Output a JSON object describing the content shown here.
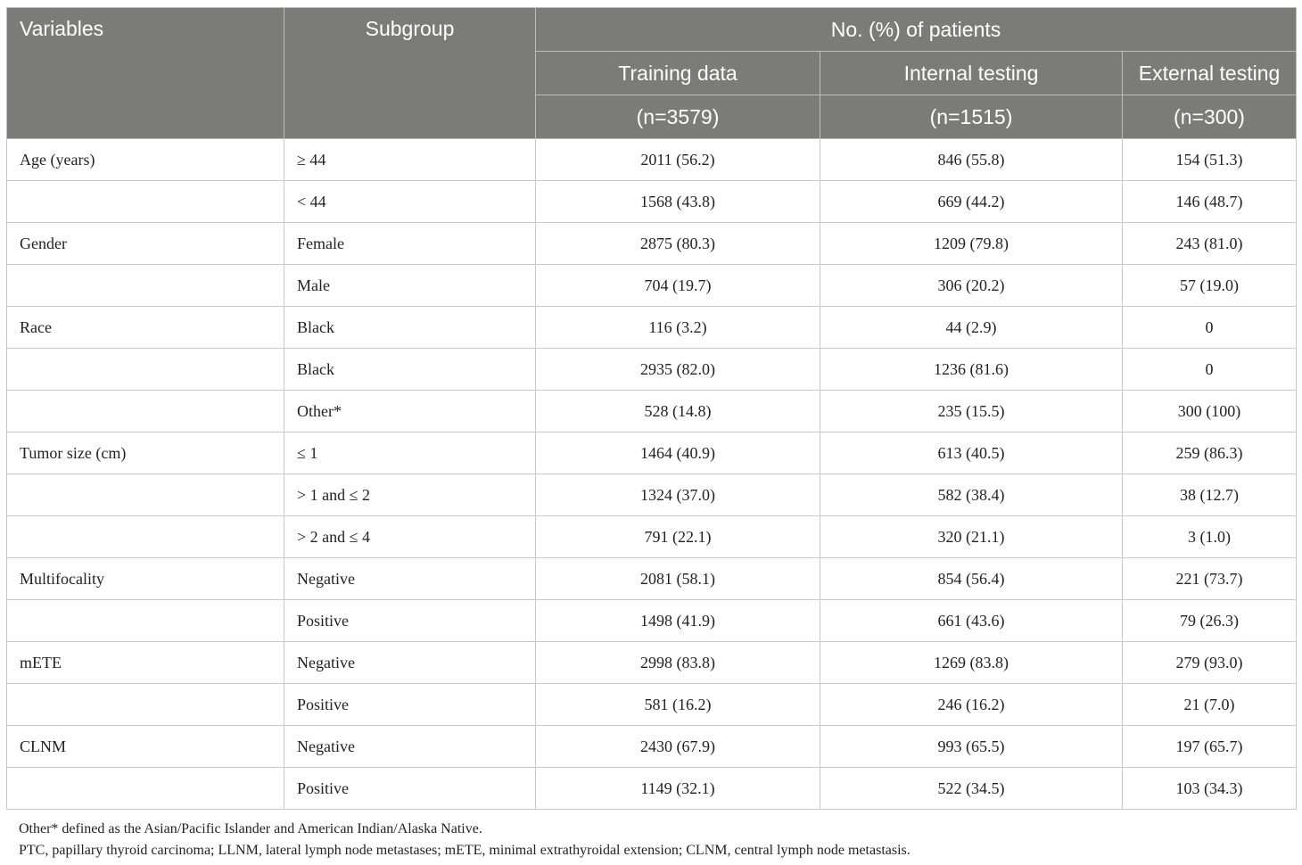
{
  "header": {
    "variables": "Variables",
    "subgroup": "Subgroup",
    "group_title": "No. (%) of patients",
    "cols": [
      {
        "name": "Training data",
        "n": "(n=3579)"
      },
      {
        "name": "Internal testing",
        "n": "(n=1515)"
      },
      {
        "name": "External testing",
        "n": "(n=300)"
      }
    ]
  },
  "rows": [
    {
      "variable": "Age (years)",
      "subgroup": "≥ 44",
      "training": "2011 (56.2)",
      "internal": "846 (55.8)",
      "external": "154 (51.3)"
    },
    {
      "variable": "",
      "subgroup": "< 44",
      "training": "1568 (43.8)",
      "internal": "669 (44.2)",
      "external": "146 (48.7)"
    },
    {
      "variable": "Gender",
      "subgroup": "Female",
      "training": "2875 (80.3)",
      "internal": "1209 (79.8)",
      "external": "243 (81.0)"
    },
    {
      "variable": "",
      "subgroup": "Male",
      "training": "704 (19.7)",
      "internal": "306 (20.2)",
      "external": "57 (19.0)"
    },
    {
      "variable": "Race",
      "subgroup": "Black",
      "training": "116 (3.2)",
      "internal": "44 (2.9)",
      "external": "0"
    },
    {
      "variable": "",
      "subgroup": "Black",
      "training": "2935 (82.0)",
      "internal": "1236 (81.6)",
      "external": "0"
    },
    {
      "variable": "",
      "subgroup": "Other*",
      "training": "528 (14.8)",
      "internal": "235 (15.5)",
      "external": "300 (100)"
    },
    {
      "variable": "Tumor size (cm)",
      "subgroup": "≤ 1",
      "training": "1464 (40.9)",
      "internal": "613 (40.5)",
      "external": "259 (86.3)"
    },
    {
      "variable": "",
      "subgroup": "> 1 and ≤ 2",
      "training": "1324 (37.0)",
      "internal": "582 (38.4)",
      "external": "38 (12.7)"
    },
    {
      "variable": "",
      "subgroup": "> 2 and ≤ 4",
      "training": "791 (22.1)",
      "internal": "320 (21.1)",
      "external": "3 (1.0)"
    },
    {
      "variable": "Multifocality",
      "subgroup": "Negative",
      "training": "2081 (58.1)",
      "internal": "854 (56.4)",
      "external": "221 (73.7)"
    },
    {
      "variable": "",
      "subgroup": "Positive",
      "training": "1498 (41.9)",
      "internal": "661 (43.6)",
      "external": "79 (26.3)"
    },
    {
      "variable": "mETE",
      "subgroup": "Negative",
      "training": "2998 (83.8)",
      "internal": "1269 (83.8)",
      "external": "279 (93.0)"
    },
    {
      "variable": "",
      "subgroup": "Positive",
      "training": "581 (16.2)",
      "internal": "246 (16.2)",
      "external": "21 (7.0)"
    },
    {
      "variable": "CLNM",
      "subgroup": "Negative",
      "training": "2430 (67.9)",
      "internal": "993 (65.5)",
      "external": "197 (65.7)"
    },
    {
      "variable": "",
      "subgroup": "Positive",
      "training": "1149 (32.1)",
      "internal": "522 (34.5)",
      "external": "103 (34.3)"
    }
  ],
  "footnotes": [
    "Other* defined as the Asian/Pacific Islander and American Indian/Alaska Native.",
    "PTC, papillary thyroid carcinoma; LLNM, lateral lymph node metastases; mETE, minimal extrathyroidal extension; CLNM, central lymph node metastasis."
  ]
}
